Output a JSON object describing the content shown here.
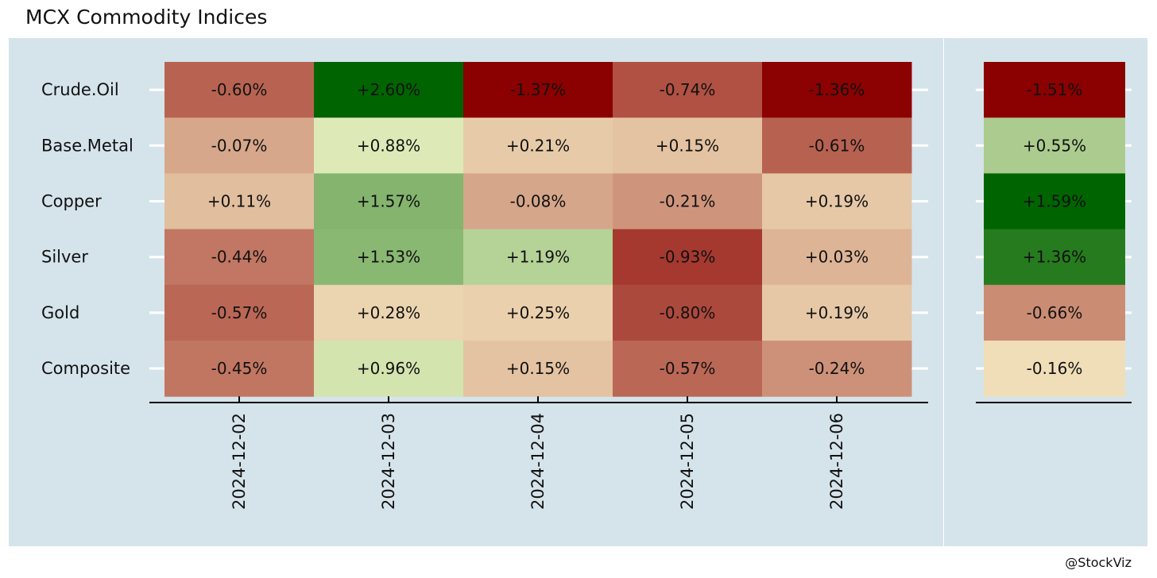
{
  "title": "MCX Commodity Indices",
  "watermark": "@StockViz",
  "colors": {
    "panel_bg": "#d5e4ea",
    "gridline": "#ffffff",
    "axis": "#000000",
    "text": "#111111",
    "scale_low": "#8b0000",
    "scale_mid": "#ffffd4",
    "scale_high": "#006400"
  },
  "chart_data": {
    "type": "heatmap",
    "title": "MCX Commodity Indices",
    "rows": [
      "Crude.Oil",
      "Base.Metal",
      "Copper",
      "Silver",
      "Gold",
      "Composite"
    ],
    "columns": [
      "2024-12-02",
      "2024-12-03",
      "2024-12-04",
      "2024-12-05",
      "2024-12-06"
    ],
    "values": [
      [
        -0.6,
        2.6,
        -1.37,
        -0.74,
        -1.36
      ],
      [
        -0.07,
        0.88,
        0.21,
        0.15,
        -0.61
      ],
      [
        0.11,
        1.57,
        -0.08,
        -0.21,
        0.19
      ],
      [
        -0.44,
        1.53,
        1.19,
        -0.93,
        0.03
      ],
      [
        -0.57,
        0.28,
        0.25,
        -0.8,
        0.19
      ],
      [
        -0.45,
        0.96,
        0.15,
        -0.57,
        -0.24
      ]
    ],
    "labels": [
      [
        "-0.60%",
        "+2.60%",
        "-1.37%",
        "-0.74%",
        "-1.36%"
      ],
      [
        "-0.07%",
        "+0.88%",
        "+0.21%",
        "+0.15%",
        "-0.61%"
      ],
      [
        "+0.11%",
        "+1.57%",
        "-0.08%",
        "-0.21%",
        "+0.19%"
      ],
      [
        "-0.44%",
        "+1.53%",
        "+1.19%",
        "-0.93%",
        "+0.03%"
      ],
      [
        "-0.57%",
        "+0.28%",
        "+0.25%",
        "-0.80%",
        "+0.19%"
      ],
      [
        "-0.45%",
        "+0.96%",
        "+0.15%",
        "-0.57%",
        "-0.24%"
      ]
    ],
    "summary": {
      "values": [
        -1.51,
        0.55,
        1.59,
        1.36,
        -0.66,
        -0.16
      ],
      "labels": [
        "-1.51%",
        "+0.55%",
        "+1.59%",
        "+1.36%",
        "-0.66%",
        "-0.16%"
      ]
    },
    "legend": "none"
  }
}
